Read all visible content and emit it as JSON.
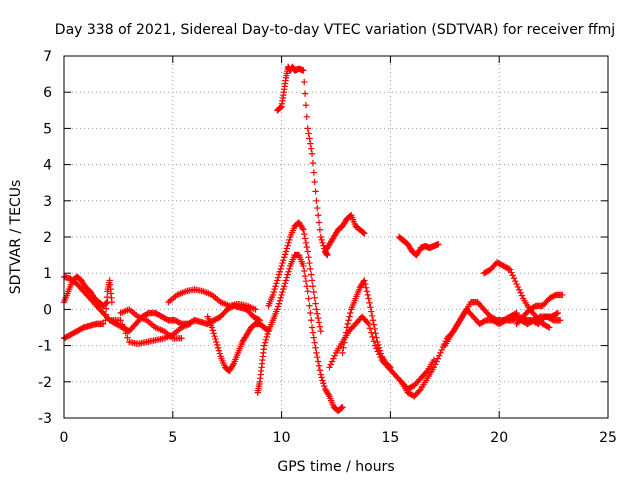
{
  "chart_data": {
    "type": "scatter",
    "title": "Day 338 of 2021, Sidereal Day-to-day VTEC variation (SDTVAR) for receiver ffmj",
    "xlabel": "GPS time / hours",
    "ylabel": "SDTVAR / TECUs",
    "xlim": [
      0,
      25
    ],
    "ylim": [
      -3,
      7
    ],
    "xticks": [
      "0",
      "5",
      "10",
      "15",
      "20",
      "25"
    ],
    "yticks": [
      "-3",
      "-2",
      "-1",
      "0",
      "1",
      "2",
      "3",
      "4",
      "5",
      "6",
      "7"
    ],
    "grid": true,
    "legend": "none",
    "marker": "+",
    "series_color": "#ff0000",
    "series": [
      {
        "name": "s1",
        "x": [
          0.0,
          0.2,
          0.4,
          0.6,
          0.8,
          1.0,
          1.2,
          1.4,
          1.6,
          1.8,
          2.0
        ],
        "y": [
          0.2,
          0.5,
          0.8,
          0.9,
          0.8,
          0.6,
          0.5,
          0.3,
          0.2,
          0.1,
          0.2
        ]
      },
      {
        "name": "s2",
        "x": [
          0.0,
          0.3,
          0.6,
          0.9,
          1.2,
          1.5,
          1.8,
          2.1,
          2.4,
          2.7,
          3.0,
          3.3,
          3.6,
          3.9,
          4.2,
          4.5,
          4.8,
          5.1,
          5.4,
          5.7,
          6.0,
          6.3,
          6.6,
          6.9,
          7.2,
          7.5,
          7.8,
          8.1,
          8.4,
          8.7,
          9.0
        ],
        "y": [
          0.9,
          0.85,
          0.7,
          0.5,
          0.3,
          0.1,
          -0.1,
          -0.3,
          -0.4,
          -0.5,
          -0.6,
          -0.4,
          -0.2,
          -0.1,
          -0.1,
          -0.2,
          -0.3,
          -0.3,
          -0.4,
          -0.4,
          -0.3,
          -0.35,
          -0.4,
          -0.3,
          -0.2,
          0.0,
          0.1,
          0.05,
          0.0,
          -0.2,
          -0.3
        ]
      },
      {
        "name": "s3",
        "x": [
          0.0,
          0.3,
          0.6,
          0.9,
          1.2,
          1.5,
          1.8
        ],
        "y": [
          -0.8,
          -0.7,
          -0.6,
          -0.5,
          -0.45,
          -0.4,
          -0.4
        ]
      },
      {
        "name": "s4",
        "x": [
          1.9,
          2.0,
          2.1,
          2.2
        ],
        "y": [
          -0.3,
          0.5,
          0.8,
          0.2
        ]
      },
      {
        "name": "s5",
        "x": [
          2.2,
          2.6,
          3.0,
          3.4,
          3.8,
          4.2,
          4.6,
          5.0,
          5.4,
          5.8
        ],
        "y": [
          -0.3,
          -0.3,
          -0.9,
          -0.95,
          -0.9,
          -0.85,
          -0.8,
          -0.7,
          -0.5,
          -0.4
        ]
      },
      {
        "name": "s6",
        "x": [
          2.6,
          3.0,
          3.4,
          3.8,
          4.2,
          4.6,
          5.0,
          5.4
        ],
        "y": [
          -0.1,
          0.0,
          -0.2,
          -0.3,
          -0.5,
          -0.6,
          -0.8,
          -0.8
        ]
      },
      {
        "name": "s7",
        "x": [
          4.8,
          5.2,
          5.6,
          6.0,
          6.4,
          6.8,
          7.2,
          7.6,
          8.0,
          8.4,
          8.8
        ],
        "y": [
          0.2,
          0.4,
          0.5,
          0.55,
          0.5,
          0.4,
          0.2,
          0.1,
          0.15,
          0.1,
          0.0
        ]
      },
      {
        "name": "s8",
        "x": [
          6.6,
          6.8,
          7.0,
          7.2,
          7.4,
          7.6,
          7.8,
          8.0,
          8.2,
          8.4,
          8.6,
          8.8,
          9.0,
          9.2,
          9.4
        ],
        "y": [
          -0.2,
          -0.5,
          -0.9,
          -1.3,
          -1.6,
          -1.7,
          -1.5,
          -1.2,
          -0.9,
          -0.7,
          -0.5,
          -0.4,
          -0.4,
          -0.5,
          -0.6
        ]
      },
      {
        "name": "s9",
        "x": [
          8.9,
          9.0,
          9.1,
          9.2,
          9.4,
          9.6,
          9.8,
          10.0,
          10.2,
          10.4,
          10.6,
          10.8,
          11.0,
          11.2,
          11.4,
          11.6,
          11.8,
          12.0,
          12.2,
          12.4,
          12.6,
          12.8
        ],
        "y": [
          -2.3,
          -2.0,
          -1.5,
          -1.0,
          -0.6,
          -0.3,
          0.0,
          0.4,
          0.8,
          1.2,
          1.5,
          1.5,
          1.2,
          0.5,
          -0.5,
          -1.2,
          -1.8,
          -2.2,
          -2.4,
          -2.7,
          -2.8,
          -2.7
        ]
      },
      {
        "name": "s10",
        "x": [
          9.4,
          9.6,
          9.8,
          10.0,
          10.2,
          10.4,
          10.6,
          10.8,
          11.0,
          11.2,
          11.4,
          11.6,
          11.8
        ],
        "y": [
          0.1,
          0.4,
          0.8,
          1.2,
          1.6,
          2.0,
          2.3,
          2.4,
          2.2,
          1.6,
          0.8,
          0.0,
          -0.6
        ]
      },
      {
        "name": "s11",
        "x": [
          9.8,
          10.0,
          10.1,
          10.2,
          10.3,
          10.4,
          10.5,
          10.6,
          10.8,
          11.0,
          11.2,
          11.4,
          11.6,
          11.8,
          12.0,
          12.1
        ],
        "y": [
          5.5,
          5.6,
          6.0,
          6.4,
          6.7,
          6.6,
          6.7,
          6.6,
          6.65,
          6.6,
          5.0,
          4.3,
          3.0,
          2.0,
          1.6,
          1.5
        ]
      },
      {
        "name": "s12",
        "x": [
          12.0,
          12.2,
          12.4,
          12.6,
          12.8,
          13.0,
          13.2,
          13.4,
          13.6,
          13.8
        ],
        "y": [
          1.6,
          1.8,
          2.0,
          2.2,
          2.3,
          2.5,
          2.6,
          2.3,
          2.2,
          2.1
        ]
      },
      {
        "name": "s13",
        "x": [
          12.2,
          12.5,
          12.8,
          13.1,
          13.4,
          13.7,
          14.0,
          14.3,
          14.6,
          14.9,
          15.2,
          15.5,
          15.8,
          16.1,
          16.4,
          16.7,
          17.0
        ],
        "y": [
          -1.6,
          -1.2,
          -0.9,
          -0.6,
          -0.4,
          -0.2,
          -0.4,
          -1.0,
          -1.4,
          -1.6,
          -1.8,
          -2.0,
          -2.2,
          -2.1,
          -1.9,
          -1.7,
          -1.4
        ]
      },
      {
        "name": "s14",
        "x": [
          12.8,
          13.0,
          13.2,
          13.4,
          13.6,
          13.8,
          14.0,
          14.2,
          14.4,
          14.6,
          14.8,
          15.0
        ],
        "y": [
          -1.2,
          -0.5,
          0.0,
          0.3,
          0.6,
          0.8,
          0.3,
          -0.3,
          -0.9,
          -1.3,
          -1.5,
          -1.6
        ]
      },
      {
        "name": "s15",
        "x": [
          15.4,
          15.6,
          15.8,
          16.0,
          16.2,
          16.4,
          16.6,
          16.8,
          17.0,
          17.2
        ],
        "y": [
          2.0,
          1.9,
          1.8,
          1.6,
          1.5,
          1.7,
          1.75,
          1.7,
          1.75,
          1.8
        ]
      },
      {
        "name": "s16",
        "x": [
          15.5,
          15.8,
          16.1,
          16.4,
          16.7,
          17.0,
          17.3,
          17.6,
          17.9,
          18.2,
          18.5,
          18.8,
          19.1,
          19.4,
          19.7,
          20.0,
          20.3,
          20.6,
          20.9,
          21.2,
          21.5,
          21.8,
          22.1,
          22.4,
          22.7
        ],
        "y": [
          -2.0,
          -2.3,
          -2.4,
          -2.2,
          -1.9,
          -1.6,
          -1.2,
          -0.8,
          -0.6,
          -0.3,
          0.0,
          -0.2,
          -0.4,
          -0.3,
          -0.3,
          -0.4,
          -0.3,
          -0.3,
          -0.2,
          -0.3,
          -0.3,
          -0.4,
          -0.2,
          -0.2,
          -0.1
        ]
      },
      {
        "name": "s17",
        "x": [
          17.5,
          17.8,
          18.1,
          18.4,
          18.7,
          19.0,
          19.3,
          19.6,
          19.9,
          20.2,
          20.5,
          20.8
        ],
        "y": [
          -1.0,
          -0.7,
          -0.4,
          -0.1,
          0.2,
          0.2,
          0.0,
          -0.2,
          -0.3,
          -0.3,
          -0.2,
          -0.1
        ]
      },
      {
        "name": "s18",
        "x": [
          19.3,
          19.6,
          19.9,
          20.2,
          20.5,
          20.8,
          21.1,
          21.4,
          21.7,
          22.0,
          22.3
        ],
        "y": [
          1.0,
          1.1,
          1.3,
          1.2,
          1.1,
          0.7,
          0.3,
          0.0,
          -0.2,
          -0.4,
          -0.5
        ]
      },
      {
        "name": "s19",
        "x": [
          20.8,
          21.1,
          21.4,
          21.7,
          22.0,
          22.3,
          22.6,
          22.9
        ],
        "y": [
          -0.4,
          -0.2,
          0.0,
          0.1,
          0.1,
          0.3,
          0.4,
          0.4
        ]
      },
      {
        "name": "s20",
        "x": [
          21.0,
          21.3,
          21.6,
          21.9,
          22.2,
          22.5,
          22.8
        ],
        "y": [
          -0.3,
          -0.4,
          -0.3,
          -0.2,
          -0.2,
          -0.3,
          -0.3
        ]
      }
    ]
  }
}
